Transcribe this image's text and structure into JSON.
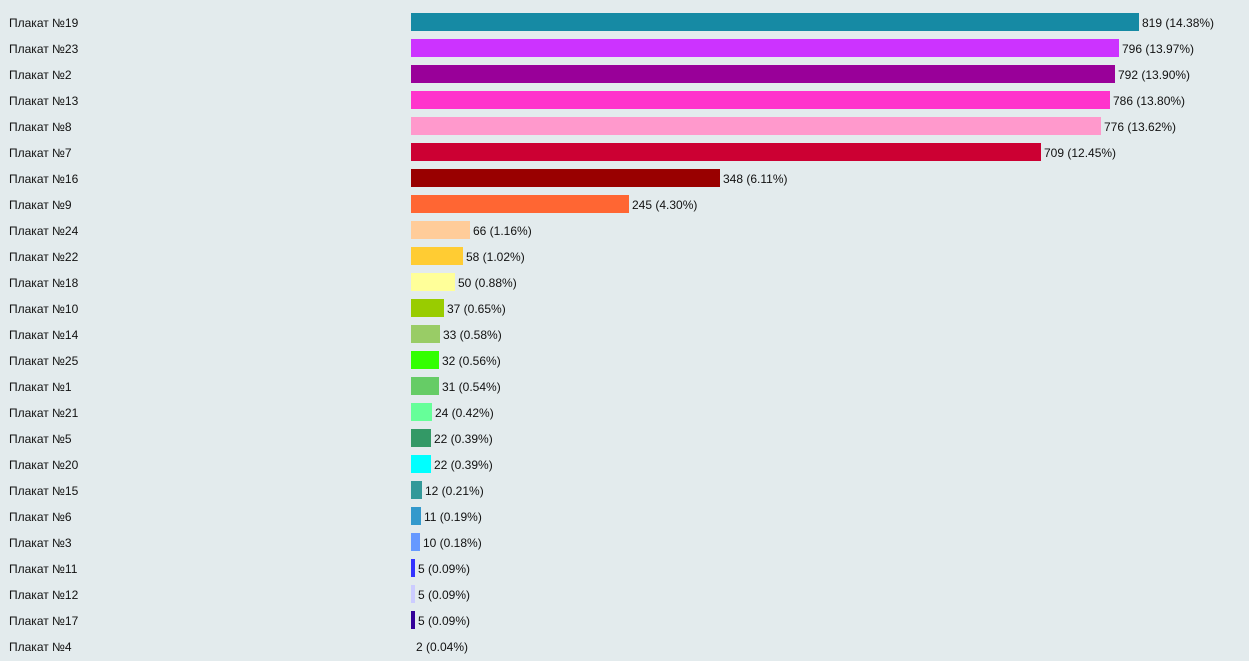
{
  "chart_data": {
    "type": "bar",
    "orientation": "horizontal",
    "xlim": [
      0,
      819
    ],
    "grid": false,
    "bars": [
      {
        "label": "Плакат №19",
        "value": 819,
        "value_label": "819 (14.38%)",
        "color": "#168aa4"
      },
      {
        "label": "Плакат №23",
        "value": 796,
        "value_label": "796 (13.97%)",
        "color": "#cc33ff"
      },
      {
        "label": "Плакат №2",
        "value": 792,
        "value_label": "792 (13.90%)",
        "color": "#990099"
      },
      {
        "label": "Плакат №13",
        "value": 786,
        "value_label": "786 (13.80%)",
        "color": "#ff33cc"
      },
      {
        "label": "Плакат №8",
        "value": 776,
        "value_label": "776 (13.62%)",
        "color": "#ff99cc"
      },
      {
        "label": "Плакат №7",
        "value": 709,
        "value_label": "709 (12.45%)",
        "color": "#cc0033"
      },
      {
        "label": "Плакат №16",
        "value": 348,
        "value_label": "348 (6.11%)",
        "color": "#990000"
      },
      {
        "label": "Плакат №9",
        "value": 245,
        "value_label": "245 (4.30%)",
        "color": "#ff6633"
      },
      {
        "label": "Плакат №24",
        "value": 66,
        "value_label": "66 (1.16%)",
        "color": "#ffcc99"
      },
      {
        "label": "Плакат №22",
        "value": 58,
        "value_label": "58 (1.02%)",
        "color": "#ffcc33"
      },
      {
        "label": "Плакат №18",
        "value": 50,
        "value_label": "50 (0.88%)",
        "color": "#ffff99"
      },
      {
        "label": "Плакат №10",
        "value": 37,
        "value_label": "37 (0.65%)",
        "color": "#99cc00"
      },
      {
        "label": "Плакат №14",
        "value": 33,
        "value_label": "33 (0.58%)",
        "color": "#99cc66"
      },
      {
        "label": "Плакат №25",
        "value": 32,
        "value_label": "32 (0.56%)",
        "color": "#33ff00"
      },
      {
        "label": "Плакат №1",
        "value": 31,
        "value_label": "31 (0.54%)",
        "color": "#66cc66"
      },
      {
        "label": "Плакат №21",
        "value": 24,
        "value_label": "24 (0.42%)",
        "color": "#66ff99"
      },
      {
        "label": "Плакат №5",
        "value": 22,
        "value_label": "22 (0.39%)",
        "color": "#339966"
      },
      {
        "label": "Плакат №20",
        "value": 22,
        "value_label": "22 (0.39%)",
        "color": "#00ffff"
      },
      {
        "label": "Плакат №15",
        "value": 12,
        "value_label": "12 (0.21%)",
        "color": "#339999"
      },
      {
        "label": "Плакат №6",
        "value": 11,
        "value_label": "11 (0.19%)",
        "color": "#3399cc"
      },
      {
        "label": "Плакат №3",
        "value": 10,
        "value_label": "10 (0.18%)",
        "color": "#6699ff"
      },
      {
        "label": "Плакат №11",
        "value": 5,
        "value_label": "5 (0.09%)",
        "color": "#3333ff"
      },
      {
        "label": "Плакат №12",
        "value": 5,
        "value_label": "5 (0.09%)",
        "color": "#ccccff"
      },
      {
        "label": "Плакат №17",
        "value": 5,
        "value_label": "5 (0.09%)",
        "color": "#330099"
      },
      {
        "label": "Плакат №4",
        "value": 2,
        "value_label": "2 (0.04%)",
        "color": "#e3ebed"
      }
    ]
  }
}
